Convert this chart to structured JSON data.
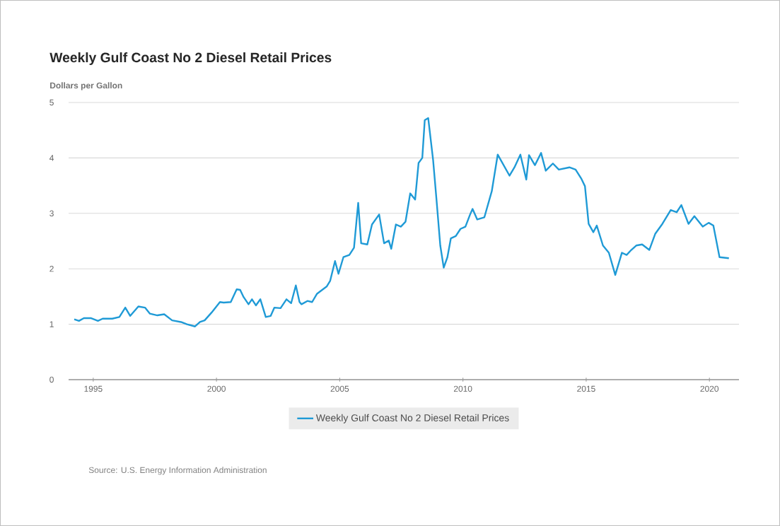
{
  "chart_data": {
    "type": "line",
    "title": "Weekly Gulf Coast No 2 Diesel Retail Prices",
    "ylabel": "Dollars per Gallon",
    "annotations": [
      "Source: U.S. Energy Information Administration"
    ],
    "x": [
      1994.23,
      1994.42,
      1994.62,
      1994.9,
      1995.19,
      1995.38,
      1995.77,
      1996.06,
      1996.3,
      1996.5,
      1996.83,
      1997.1,
      1997.3,
      1997.6,
      1997.88,
      1998.2,
      1998.56,
      1998.8,
      1999.13,
      1999.33,
      1999.52,
      1999.8,
      2000.14,
      2000.29,
      2000.58,
      2000.82,
      2000.96,
      2001.1,
      2001.3,
      2001.44,
      2001.6,
      2001.78,
      2002.0,
      2002.2,
      2002.35,
      2002.6,
      2002.84,
      2003.03,
      2003.22,
      2003.37,
      2003.45,
      2003.69,
      2003.88,
      2004.08,
      2004.47,
      2004.61,
      2004.81,
      2004.95,
      2005.15,
      2005.39,
      2005.58,
      2005.75,
      2005.87,
      2006.12,
      2006.31,
      2006.6,
      2006.8,
      2006.99,
      2007.09,
      2007.28,
      2007.48,
      2007.67,
      2007.86,
      2008.06,
      2008.2,
      2008.35,
      2008.45,
      2008.59,
      2008.79,
      2008.93,
      2009.08,
      2009.22,
      2009.37,
      2009.51,
      2009.71,
      2009.9,
      2010.1,
      2010.29,
      2010.39,
      2010.58,
      2010.87,
      2011.17,
      2011.41,
      2011.65,
      2011.89,
      2012.09,
      2012.33,
      2012.57,
      2012.68,
      2012.92,
      2013.17,
      2013.36,
      2013.65,
      2013.89,
      2014.32,
      2014.57,
      2014.81,
      2014.95,
      2015.1,
      2015.29,
      2015.43,
      2015.68,
      2015.92,
      2016.18,
      2016.45,
      2016.64,
      2016.83,
      2017.03,
      2017.27,
      2017.56,
      2017.8,
      2018.09,
      2018.43,
      2018.67,
      2018.86,
      2019.15,
      2019.39,
      2019.73,
      2019.97,
      2020.16,
      2020.41,
      2020.79
    ],
    "series": [
      {
        "name": "Weekly Gulf Coast No 2 Diesel Retail Prices",
        "color": "#1f9ad6",
        "values": [
          1.09,
          1.06,
          1.11,
          1.11,
          1.06,
          1.1,
          1.1,
          1.13,
          1.3,
          1.15,
          1.32,
          1.3,
          1.19,
          1.16,
          1.18,
          1.07,
          1.04,
          1.0,
          0.96,
          1.04,
          1.07,
          1.21,
          1.4,
          1.39,
          1.4,
          1.63,
          1.62,
          1.49,
          1.36,
          1.45,
          1.34,
          1.45,
          1.13,
          1.15,
          1.3,
          1.29,
          1.45,
          1.38,
          1.7,
          1.4,
          1.36,
          1.42,
          1.4,
          1.55,
          1.68,
          1.78,
          2.14,
          1.91,
          2.21,
          2.25,
          2.38,
          3.19,
          2.46,
          2.44,
          2.8,
          2.98,
          2.46,
          2.51,
          2.36,
          2.8,
          2.76,
          2.85,
          3.36,
          3.25,
          3.91,
          4.0,
          4.68,
          4.72,
          3.96,
          3.23,
          2.42,
          2.02,
          2.21,
          2.55,
          2.59,
          2.72,
          2.76,
          2.98,
          3.08,
          2.89,
          2.93,
          3.4,
          4.06,
          3.87,
          3.68,
          3.83,
          4.06,
          3.61,
          4.05,
          3.87,
          4.09,
          3.77,
          3.9,
          3.79,
          3.83,
          3.79,
          3.62,
          3.49,
          2.81,
          2.66,
          2.78,
          2.42,
          2.29,
          1.89,
          2.29,
          2.25,
          2.34,
          2.42,
          2.44,
          2.34,
          2.63,
          2.81,
          3.06,
          3.02,
          3.15,
          2.81,
          2.95,
          2.76,
          2.83,
          2.78,
          2.21,
          2.19
        ]
      }
    ],
    "xlim": [
      1994.0,
      2021.2
    ],
    "ylim": [
      0,
      5
    ],
    "xticks": [
      1995,
      2000,
      2005,
      2010,
      2015,
      2020
    ],
    "yticks": [
      0,
      1,
      2,
      3,
      4,
      5
    ],
    "grid": "y",
    "legend": "bottom",
    "line_style": "solid"
  }
}
